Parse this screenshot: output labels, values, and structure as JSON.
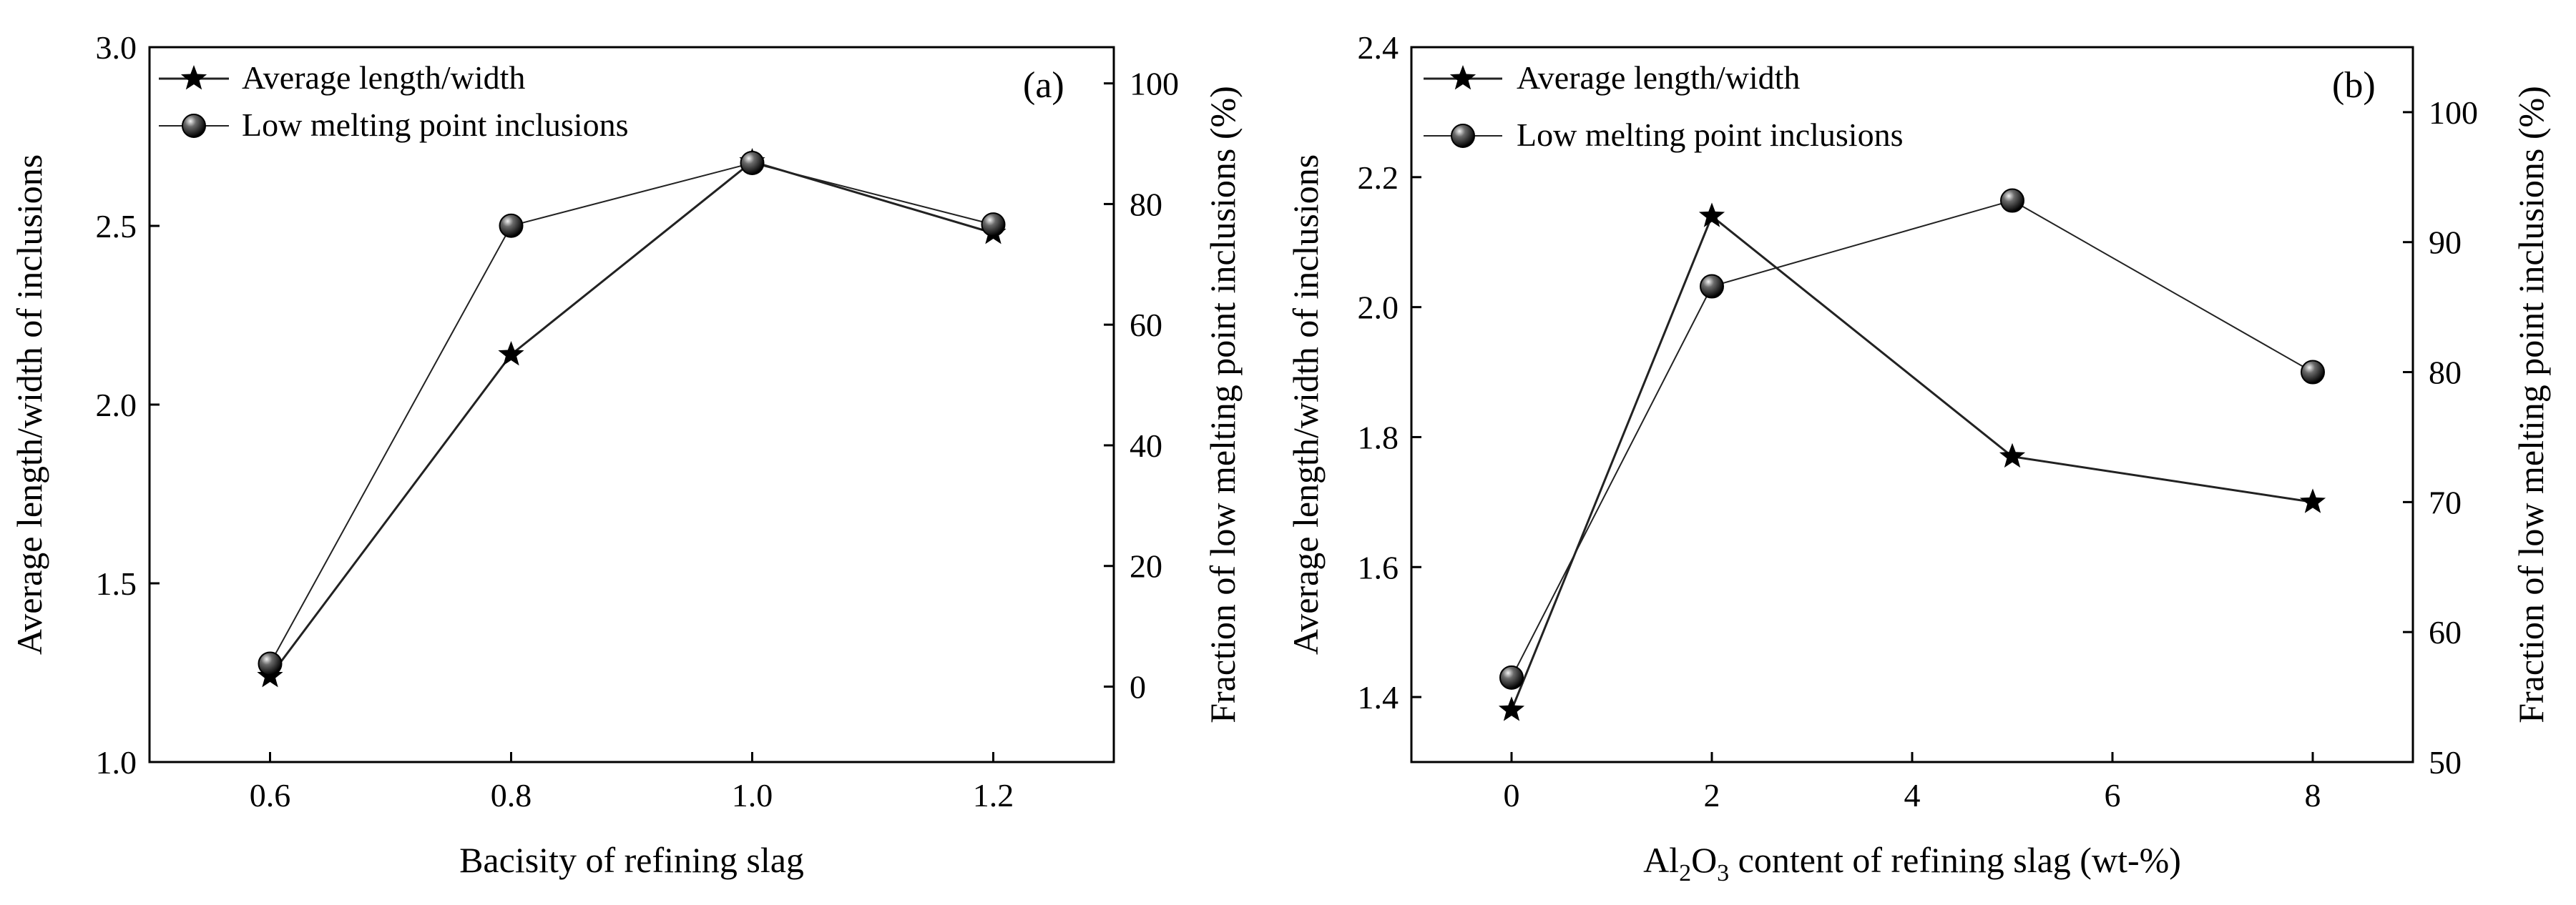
{
  "chart_data": [
    {
      "type": "line",
      "panel_label": "(a)",
      "xlabel": "Bacisity of refining slag",
      "xlabel_sub": null,
      "ylabel_left": "Average length/width of inclusions",
      "ylabel_right": "Fraction of low melting point inclusions (%)",
      "xlim": [
        0.5,
        1.3
      ],
      "xticks": [
        0.6,
        0.8,
        1.0,
        1.2
      ],
      "xtick_labels": [
        "0.6",
        "0.8",
        "1.0",
        "1.2"
      ],
      "ylim_left": [
        1.0,
        3.0
      ],
      "yticks_left": [
        1.0,
        1.5,
        2.0,
        2.5,
        3.0
      ],
      "ytick_labels_left": [
        "1.0",
        "1.5",
        "2.0",
        "2.5",
        "3.0"
      ],
      "ylim_right": [
        -12.5,
        106
      ],
      "yticks_right": [
        0,
        20,
        40,
        60,
        80,
        100
      ],
      "ytick_labels_right": [
        "0",
        "20",
        "40",
        "60",
        "80",
        "100"
      ],
      "series": [
        {
          "name": "Average length/width",
          "axis": "left",
          "marker": "star",
          "x": [
            0.6,
            0.8,
            1.0,
            1.2
          ],
          "values": [
            1.24,
            2.14,
            2.68,
            2.48
          ]
        },
        {
          "name": "Low melting point inclusions",
          "axis": "right",
          "marker": "ball",
          "x": [
            0.6,
            0.8,
            1.0,
            1.2
          ],
          "values": [
            3.8,
            76.4,
            86.8,
            76.6
          ]
        }
      ],
      "legend_position": "top-left"
    },
    {
      "type": "line",
      "panel_label": "(b)",
      "xlabel": "Al2O3 content of refining slag (wt-%)",
      "xlabel_parts": [
        "Al",
        "2",
        "O",
        "3",
        " content of refining slag (wt-%)"
      ],
      "ylabel_left": "Average length/width of inclusions",
      "ylabel_right": "Fraction of low melting point inclusions (%)",
      "xlim": [
        -1,
        9
      ],
      "xticks": [
        0,
        2,
        4,
        6,
        8
      ],
      "xtick_labels": [
        "0",
        "2",
        "4",
        "6",
        "8"
      ],
      "ylim_left": [
        1.3,
        2.4
      ],
      "yticks_left": [
        1.4,
        1.6,
        1.8,
        2.0,
        2.2,
        2.4
      ],
      "ytick_labels_left": [
        "1.4",
        "1.6",
        "1.8",
        "2.0",
        "2.2",
        "2.4"
      ],
      "ylim_right": [
        50,
        105
      ],
      "yticks_right": [
        50,
        60,
        70,
        80,
        90,
        100
      ],
      "ytick_labels_right": [
        "50",
        "60",
        "70",
        "80",
        "90",
        "100"
      ],
      "series": [
        {
          "name": "Average length/width",
          "axis": "left",
          "marker": "star",
          "x": [
            0,
            2,
            5,
            8
          ],
          "values": [
            1.38,
            2.14,
            1.77,
            1.7
          ]
        },
        {
          "name": "Low melting point inclusions",
          "axis": "right",
          "marker": "ball",
          "x": [
            0,
            2,
            5,
            8
          ],
          "values": [
            56.5,
            86.6,
            93.2,
            80.0
          ]
        }
      ],
      "legend_position": "top-left"
    }
  ]
}
